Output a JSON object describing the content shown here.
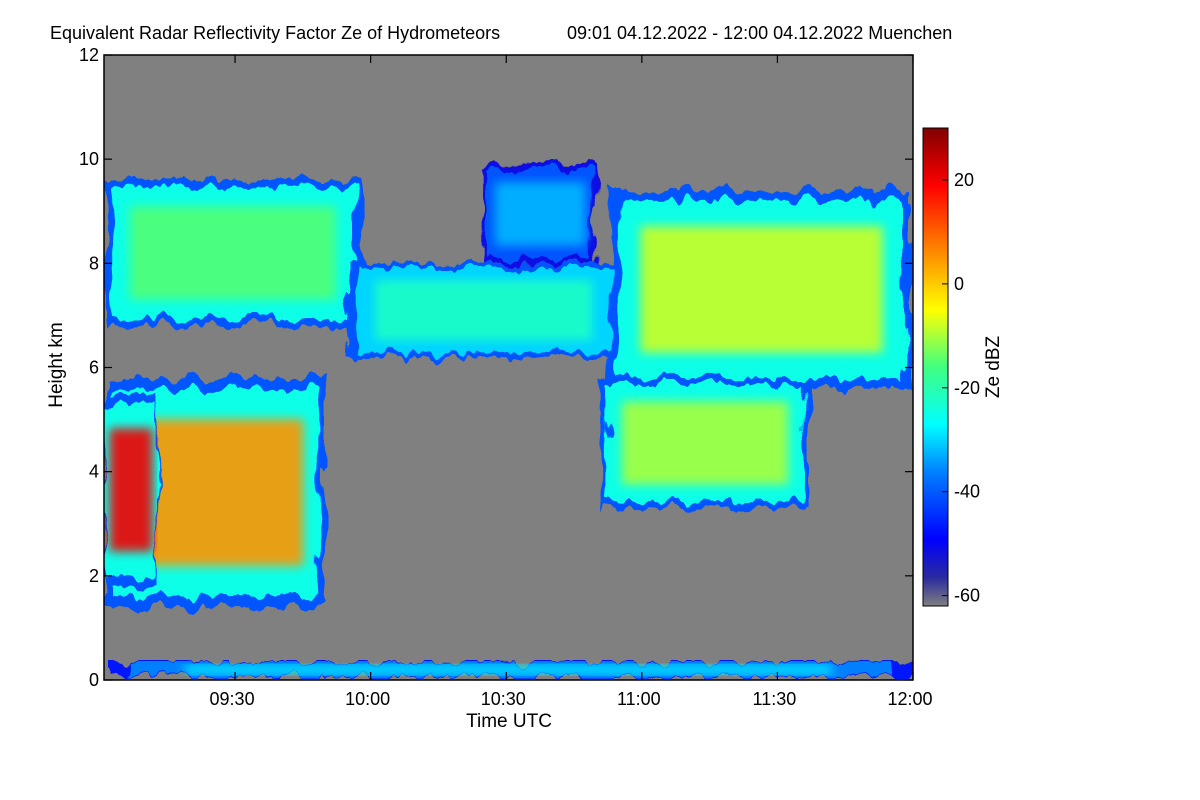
{
  "chart_data": {
    "type": "heatmap",
    "title": "Equivalent Radar Reflectivity Factor Ze of Hydrometeors",
    "title_time_range": "09:01 04.12.2022 - 12:00 04.12.2022 Muenchen",
    "xlabel": "Time UTC",
    "ylabel": "Height km",
    "x_range_minutes": [
      541,
      720
    ],
    "x_ticks": [
      {
        "label": "09:30",
        "minutes": 570
      },
      {
        "label": "10:00",
        "minutes": 600
      },
      {
        "label": "10:30",
        "minutes": 630
      },
      {
        "label": "11:00",
        "minutes": 660
      },
      {
        "label": "11:30",
        "minutes": 690
      },
      {
        "label": "12:00",
        "minutes": 720
      }
    ],
    "y_range_km": [
      0,
      12
    ],
    "y_ticks": [
      {
        "label": "0",
        "value": 0
      },
      {
        "label": "2",
        "value": 2
      },
      {
        "label": "4",
        "value": 4
      },
      {
        "label": "6",
        "value": 6
      },
      {
        "label": "8",
        "value": 8
      },
      {
        "label": "10",
        "value": 10
      },
      {
        "label": "12",
        "value": 12
      }
    ],
    "colorbar": {
      "label": "Ze dBZ",
      "range": [
        -62,
        30
      ],
      "ticks": [
        {
          "label": "20",
          "value": 20
        },
        {
          "label": "0",
          "value": 0
        },
        {
          "label": "-20",
          "value": -20
        },
        {
          "label": "-40",
          "value": -40
        },
        {
          "label": "-60",
          "value": -60
        }
      ]
    },
    "no_data_color": "#808080",
    "echo_regions": [
      {
        "name": "upper-cirrus-deck",
        "t_start": 541,
        "t_end": 598,
        "h_bottom": 6.8,
        "h_top": 9.6,
        "ze": -15
      },
      {
        "name": "upper-cirrus-gap-fill",
        "t_start": 595,
        "t_end": 655,
        "h_bottom": 6.2,
        "h_top": 8.0,
        "ze": -22
      },
      {
        "name": "upper-cirrus-filaments",
        "t_start": 625,
        "t_end": 650,
        "h_bottom": 8.0,
        "h_top": 9.9,
        "ze": -32
      },
      {
        "name": "upper-cloud-right",
        "t_start": 653,
        "t_end": 720,
        "h_bottom": 5.6,
        "h_top": 9.4,
        "ze": -8
      },
      {
        "name": "lower-cloud-right",
        "t_start": 651,
        "t_end": 697,
        "h_bottom": 3.3,
        "h_top": 5.8,
        "ze": -10
      },
      {
        "name": "convective-core-left",
        "t_start": 541,
        "t_end": 590,
        "h_bottom": 1.4,
        "h_top": 5.8,
        "ze": 5
      },
      {
        "name": "rain-core-left",
        "t_start": 541,
        "t_end": 553,
        "h_bottom": 1.8,
        "h_top": 5.5,
        "ze": 20
      },
      {
        "name": "surface-clutter",
        "t_start": 541,
        "t_end": 720,
        "h_bottom": 0.05,
        "h_top": 0.35,
        "ze": -28
      }
    ]
  }
}
